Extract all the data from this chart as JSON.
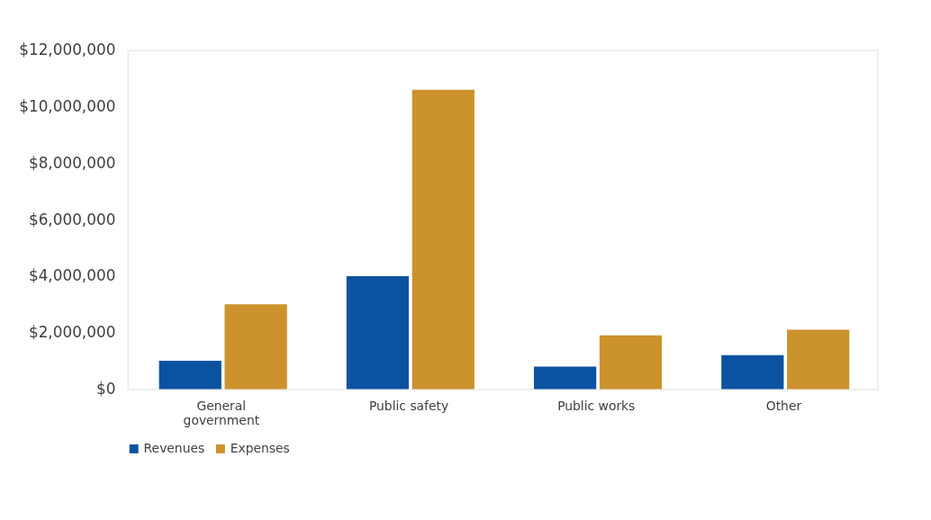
{
  "chart_data": {
    "type": "bar",
    "categories": [
      "General government",
      "Public safety",
      "Public works",
      "Other"
    ],
    "series": [
      {
        "name": "Revenues",
        "color": "#0b52a0",
        "values": [
          1000000.0,
          4000000.0,
          800000.0,
          1200000.0
        ]
      },
      {
        "name": "Expenses",
        "color": "#cc922c",
        "values": [
          3000000.0,
          10600000.0,
          1900000.0,
          2100000.0
        ]
      }
    ],
    "ylim": [
      0,
      12000000
    ],
    "yticks": [
      {
        "value": 0,
        "label": "$0"
      },
      {
        "value": 2000000,
        "label": "$2,000,000"
      },
      {
        "value": 4000000,
        "label": "$4,000,000"
      },
      {
        "value": 6000000,
        "label": "$6,000,000"
      },
      {
        "value": 8000000,
        "label": "$8,000,000"
      },
      {
        "value": 10000000,
        "label": "$10,000,000"
      },
      {
        "value": 12000000,
        "label": "$12,000,000"
      }
    ],
    "grid": false,
    "legend": "bottom"
  }
}
